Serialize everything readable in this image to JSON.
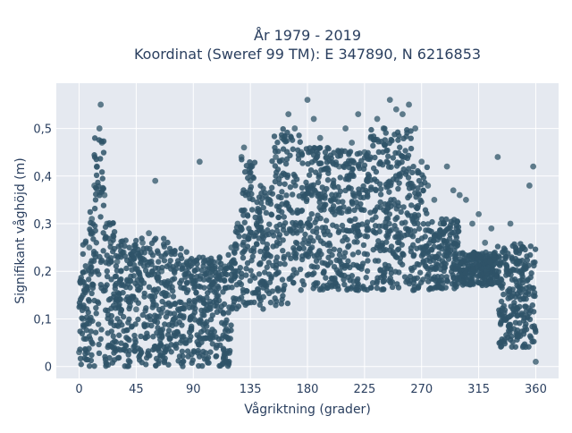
{
  "chart_data": {
    "type": "scatter",
    "title_line1": "År 1979 - 2019",
    "title_line2": "Koordinat (Sweref 99 TM): E 347890, N 6216853",
    "xlabel": "Vågriktning (grader)",
    "ylabel": "Signifikant våghöjd (m)",
    "xlim": [
      -18,
      378
    ],
    "ylim": [
      -0.025,
      0.595
    ],
    "x_ticks": [
      0,
      45,
      90,
      135,
      180,
      225,
      270,
      315,
      360
    ],
    "y_ticks": [
      0,
      0.1,
      0.2,
      0.3,
      0.4,
      0.5
    ],
    "y_tick_labels": [
      "0",
      "0,1",
      "0,2",
      "0,3",
      "0,4",
      "0,5"
    ],
    "grid": true,
    "marker_color": "#2f5468",
    "plot_bg": "#e5e9f0",
    "series": [
      {
        "points": [
          [
            0,
            0.03
          ],
          [
            3,
            0.1
          ],
          [
            5,
            0.2
          ],
          [
            8,
            0.25
          ],
          [
            10,
            0.31
          ],
          [
            12,
            0.38
          ],
          [
            14,
            0.42
          ],
          [
            16,
            0.5
          ],
          [
            17,
            0.55
          ],
          [
            18,
            0.47
          ],
          [
            20,
            0.36
          ],
          [
            22,
            0.3
          ],
          [
            25,
            0.26
          ],
          [
            30,
            0.22
          ],
          [
            35,
            0.24
          ],
          [
            40,
            0.18
          ],
          [
            45,
            0.12
          ],
          [
            50,
            0.26
          ],
          [
            55,
            0.28
          ],
          [
            60,
            0.39
          ],
          [
            65,
            0.2
          ],
          [
            70,
            0.15
          ],
          [
            75,
            0.1
          ],
          [
            80,
            0.05
          ],
          [
            85,
            0.22
          ],
          [
            90,
            0.18
          ],
          [
            95,
            0.43
          ],
          [
            100,
            0.12
          ],
          [
            105,
            0.2
          ],
          [
            110,
            0.22
          ],
          [
            115,
            0.21
          ],
          [
            120,
            0.25
          ],
          [
            125,
            0.3
          ],
          [
            128,
            0.44
          ],
          [
            130,
            0.46
          ],
          [
            135,
            0.39
          ],
          [
            140,
            0.3
          ],
          [
            145,
            0.28
          ],
          [
            150,
            0.35
          ],
          [
            155,
            0.44
          ],
          [
            160,
            0.48
          ],
          [
            165,
            0.53
          ],
          [
            170,
            0.5
          ],
          [
            175,
            0.45
          ],
          [
            180,
            0.56
          ],
          [
            185,
            0.52
          ],
          [
            190,
            0.48
          ],
          [
            195,
            0.44
          ],
          [
            200,
            0.38
          ],
          [
            205,
            0.42
          ],
          [
            210,
            0.5
          ],
          [
            215,
            0.47
          ],
          [
            220,
            0.53
          ],
          [
            225,
            0.45
          ],
          [
            230,
            0.48
          ],
          [
            235,
            0.52
          ],
          [
            240,
            0.5
          ],
          [
            245,
            0.56
          ],
          [
            250,
            0.54
          ],
          [
            255,
            0.53
          ],
          [
            260,
            0.55
          ],
          [
            265,
            0.5
          ],
          [
            270,
            0.43
          ],
          [
            275,
            0.38
          ],
          [
            280,
            0.35
          ],
          [
            285,
            0.3
          ],
          [
            290,
            0.42
          ],
          [
            295,
            0.37
          ],
          [
            300,
            0.36
          ],
          [
            305,
            0.35
          ],
          [
            310,
            0.3
          ],
          [
            315,
            0.32
          ],
          [
            320,
            0.26
          ],
          [
            325,
            0.29
          ],
          [
            330,
            0.44
          ],
          [
            335,
            0.24
          ],
          [
            340,
            0.3
          ],
          [
            345,
            0.22
          ],
          [
            350,
            0.25
          ],
          [
            355,
            0.38
          ],
          [
            358,
            0.42
          ],
          [
            360,
            0.01
          ]
        ]
      }
    ]
  }
}
